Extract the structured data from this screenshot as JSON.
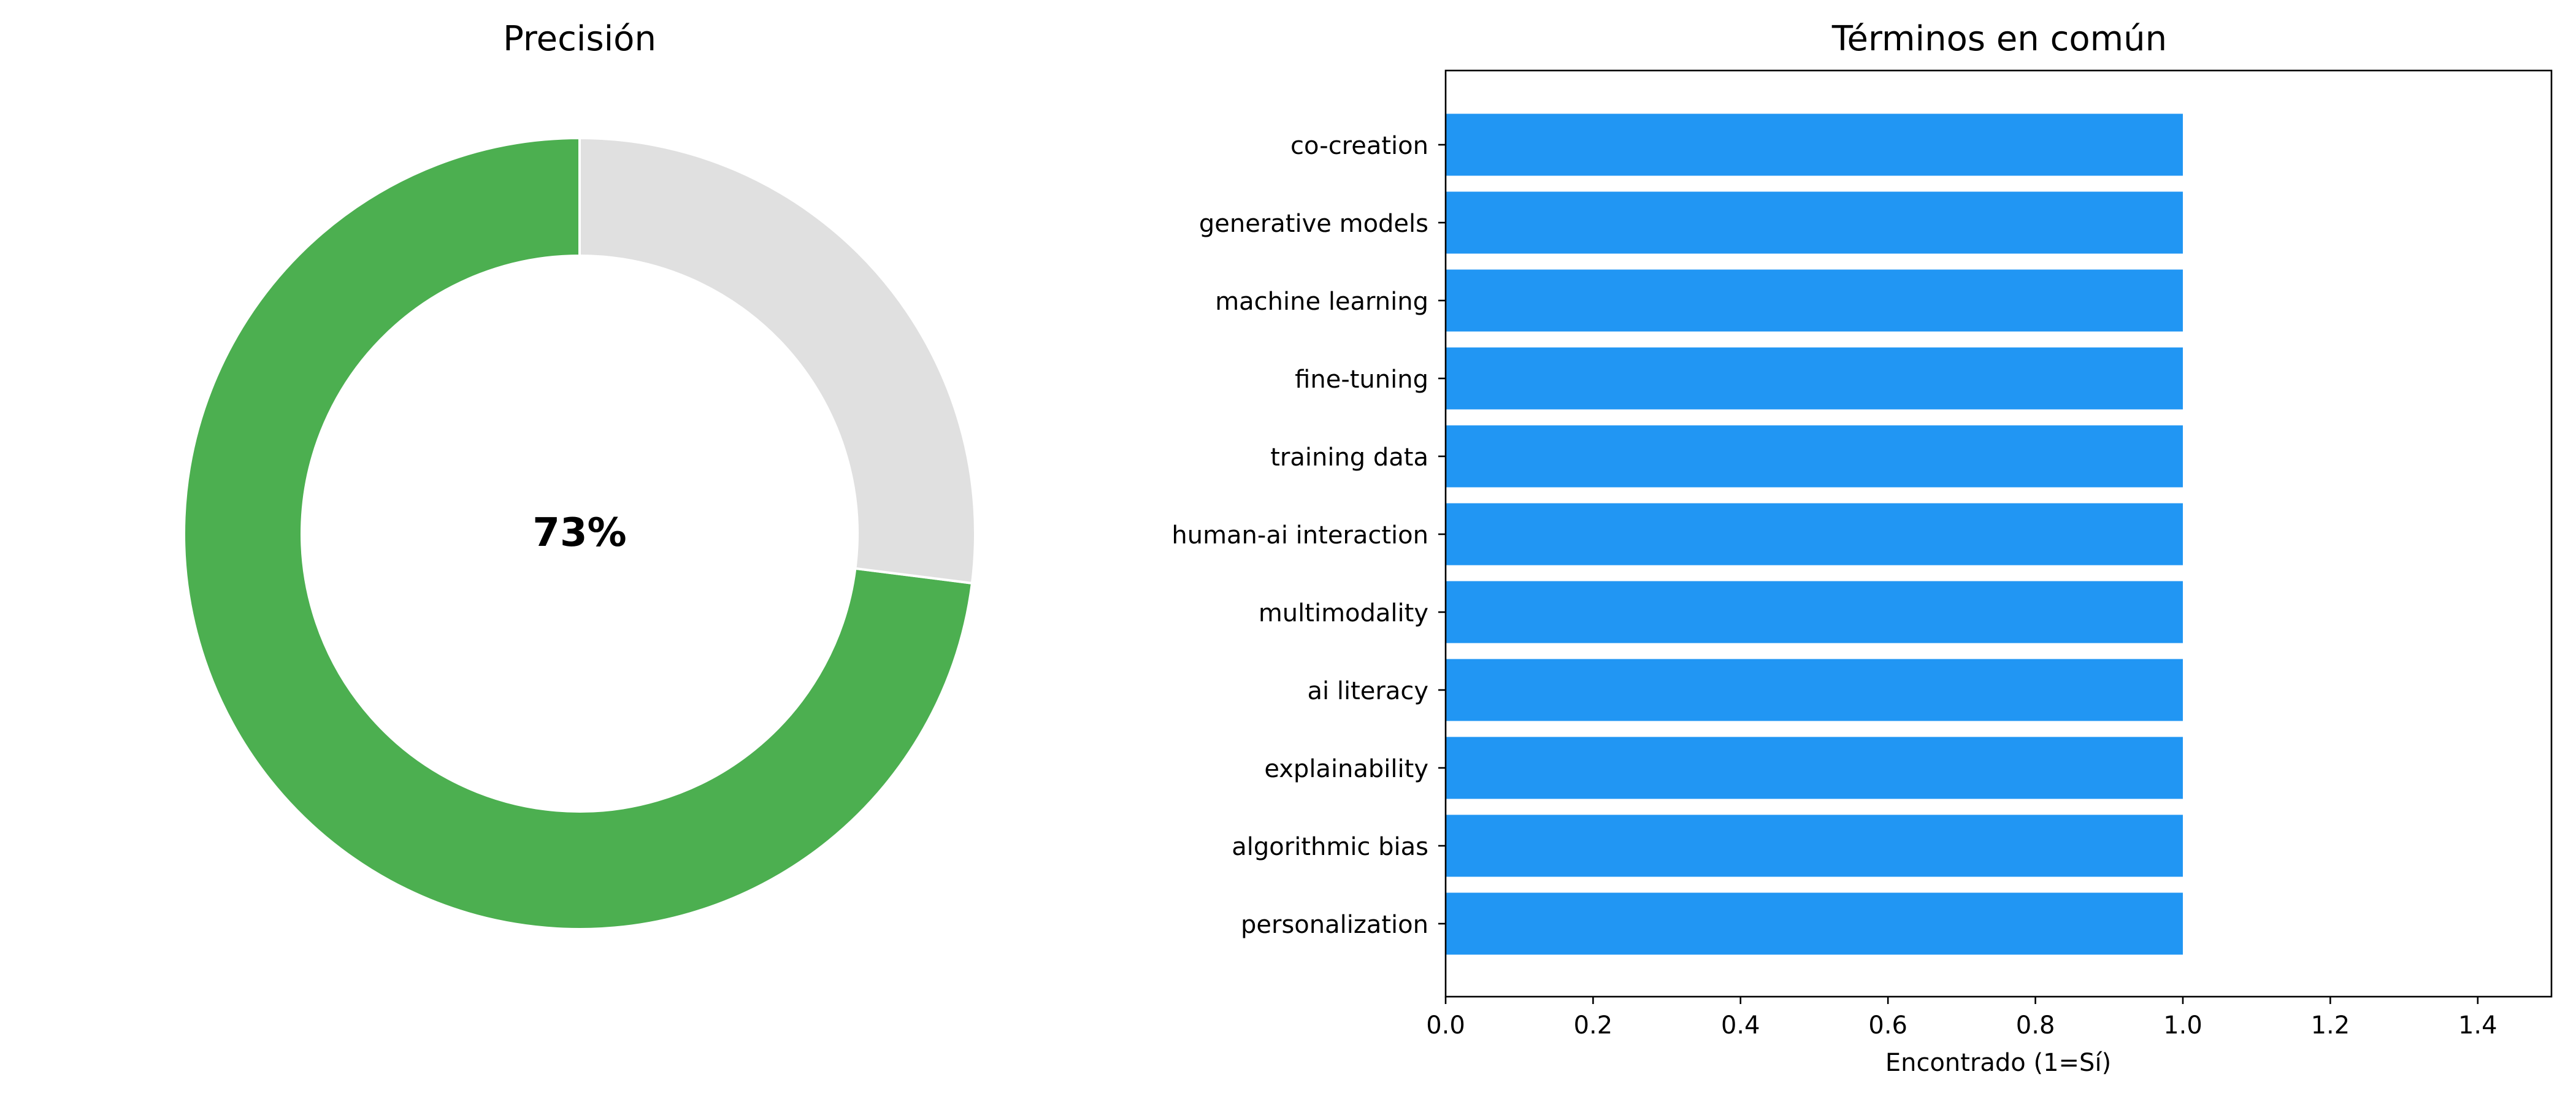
{
  "chart_data": [
    {
      "type": "pie",
      "title": "Precisión",
      "center_label": "73%",
      "slices": [
        {
          "label": "",
          "value": 73,
          "color": "#4caf50"
        },
        {
          "label": "",
          "value": 27,
          "color": "#e0e0e0"
        }
      ],
      "donut": true,
      "start": "top",
      "direction": "counterclockwise"
    },
    {
      "type": "bar",
      "orientation": "horizontal",
      "title": "Términos en común",
      "xlabel": "Encontrado (1=Sí)",
      "ylabel": "",
      "xlim": [
        0,
        1.5
      ],
      "xticks": [
        0.0,
        0.2,
        0.4,
        0.6,
        0.8,
        1.0,
        1.2,
        1.4
      ],
      "xtick_labels": [
        "0.0",
        "0.2",
        "0.4",
        "0.6",
        "0.8",
        "1.0",
        "1.2",
        "1.4"
      ],
      "categories": [
        "co-creation",
        "generative models",
        "machine learning",
        "fine-tuning",
        "training data",
        "human-ai interaction",
        "multimodality",
        "ai literacy",
        "explainability",
        "algorithmic bias",
        "personalization"
      ],
      "values": [
        1,
        1,
        1,
        1,
        1,
        1,
        1,
        1,
        1,
        1,
        1
      ],
      "color": "#2196f3",
      "grid": false
    }
  ]
}
